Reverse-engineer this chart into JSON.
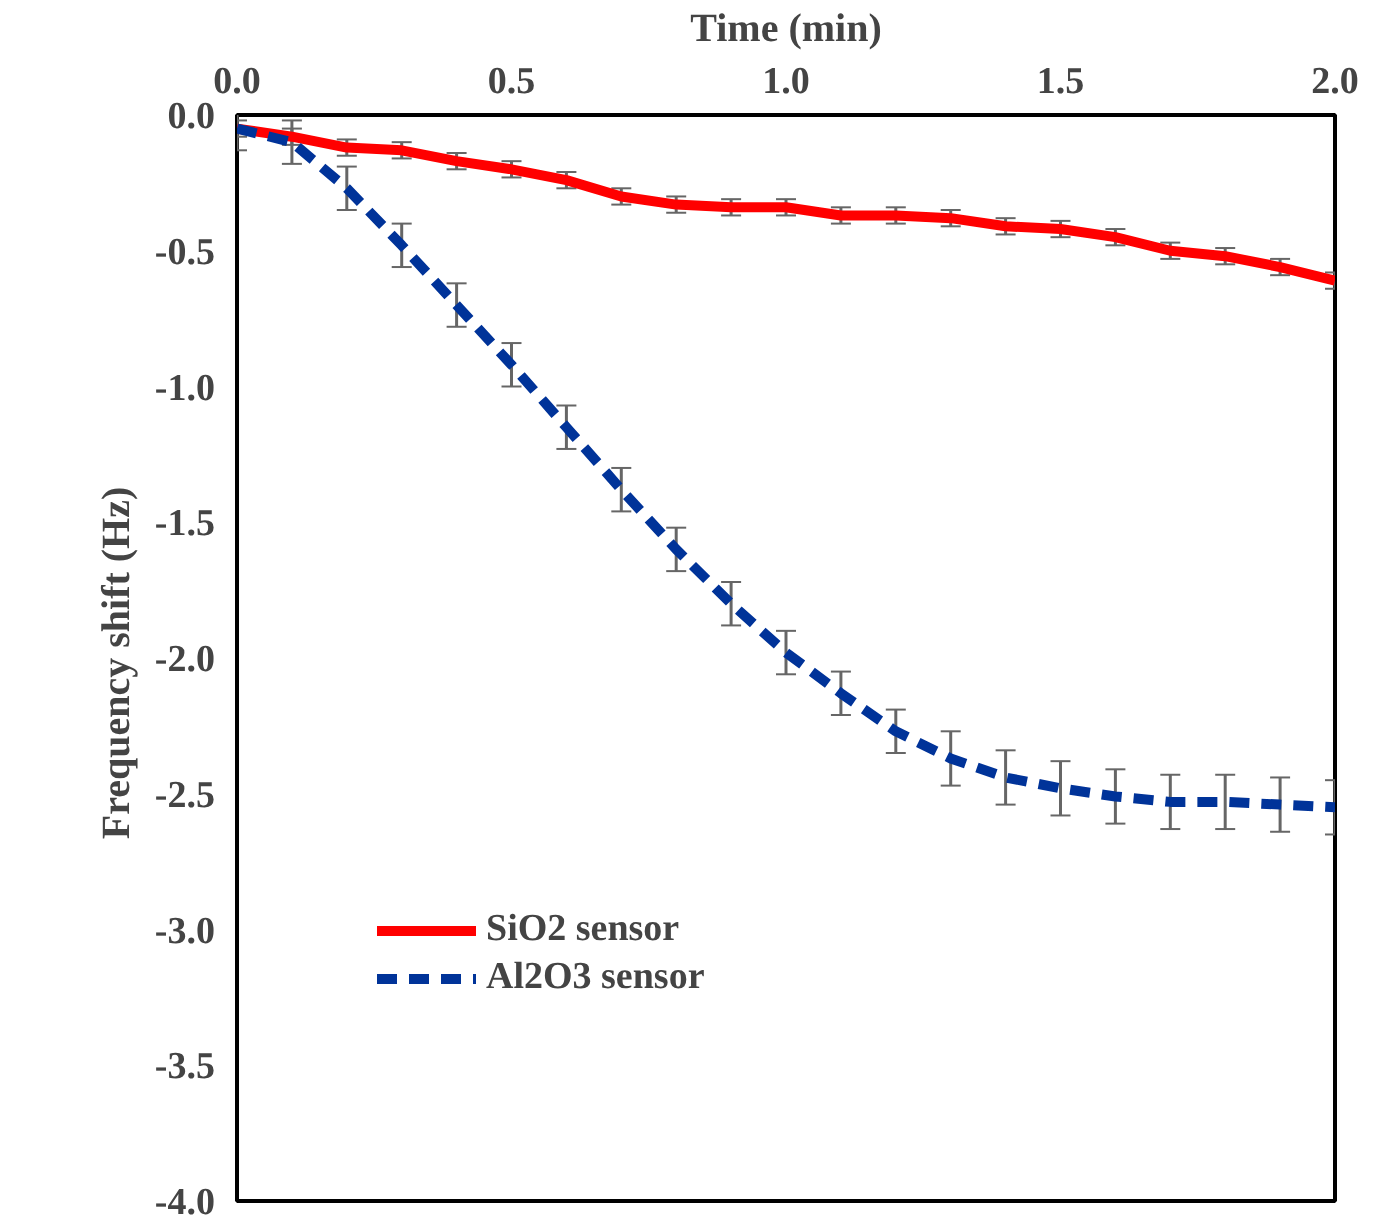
{
  "chart_data": {
    "type": "line",
    "xlabel": "Time (min)",
    "ylabel": "Frequency shift  (Hz)",
    "x": [
      0,
      0.1,
      0.2,
      0.3,
      0.4,
      0.5,
      0.6,
      0.7,
      0.8,
      0.9,
      1.0,
      1.1,
      1.2,
      1.3,
      1.4,
      1.5,
      1.6,
      1.7,
      1.8,
      1.9,
      2.0
    ],
    "xlim": [
      0,
      2.0
    ],
    "xticks": [
      {
        "value": 0,
        "label": "0.0"
      },
      0.5,
      {
        "value": 1,
        "label": "1.0"
      },
      1.5,
      {
        "value": 2,
        "label": "2.0"
      }
    ],
    "ylim": [
      -4.0,
      0
    ],
    "yticks": [
      {
        "value": -4,
        "label": "-4.0"
      },
      -3.5,
      {
        "value": -3,
        "label": "-3.0"
      },
      -2.5,
      {
        "value": -2,
        "label": "-2.0"
      },
      -1.5,
      {
        "value": -1,
        "label": "-1.0"
      },
      -0.5,
      {
        "value": 0,
        "label": "0.0"
      }
    ],
    "grid": false,
    "legend": "left",
    "marker": "none",
    "series": [
      {
        "name": "SiO2 sensor",
        "color": "#ff0000",
        "line_style": "solid",
        "values": [
          -0.05,
          -0.08,
          -0.12,
          -0.13,
          -0.17,
          -0.2,
          -0.24,
          -0.3,
          -0.33,
          -0.34,
          -0.34,
          -0.37,
          -0.37,
          -0.38,
          -0.41,
          -0.42,
          -0.45,
          -0.5,
          -0.52,
          -0.56,
          -0.61
        ],
        "errors": [
          0.03,
          0.03,
          0.03,
          0.03,
          0.03,
          0.03,
          0.03,
          0.03,
          0.03,
          0.03,
          0.03,
          0.03,
          0.03,
          0.03,
          0.03,
          0.03,
          0.03,
          0.03,
          0.03,
          0.03,
          0.03
        ]
      },
      {
        "name": "Al2O3 sensor",
        "color": "#003399",
        "line_style": "dashed",
        "values": [
          -0.05,
          -0.1,
          -0.27,
          -0.48,
          -0.7,
          -0.92,
          -1.15,
          -1.38,
          -1.6,
          -1.8,
          -1.98,
          -2.13,
          -2.27,
          -2.37,
          -2.44,
          -2.48,
          -2.51,
          -2.53,
          -2.53,
          -2.54,
          -2.55
        ],
        "errors": [
          0.08,
          0.08,
          0.08,
          0.08,
          0.08,
          0.08,
          0.08,
          0.08,
          0.08,
          0.08,
          0.08,
          0.08,
          0.08,
          0.1,
          0.1,
          0.1,
          0.1,
          0.1,
          0.1,
          0.1,
          0.1
        ]
      }
    ]
  }
}
